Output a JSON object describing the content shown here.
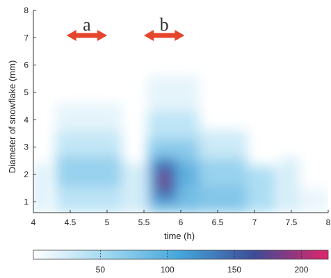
{
  "chart_data": {
    "type": "heatmap",
    "title": "",
    "xlabel": "time (h)",
    "ylabel": "Diameter of snowflake (mm)",
    "xlim": [
      4,
      8
    ],
    "ylim": [
      0.6,
      8
    ],
    "x_ticks": [
      "4",
      "4.5",
      "5",
      "5.5",
      "6",
      "6.5",
      "7",
      "7.5",
      "8"
    ],
    "y_ticks": [
      "1",
      "2",
      "3",
      "4",
      "5",
      "6",
      "7",
      "8"
    ],
    "cells": [
      {
        "x": [
          4.0,
          4.2
        ],
        "y": [
          0.6,
          2.4
        ],
        "v": 25
      },
      {
        "x": [
          4.3,
          5.2
        ],
        "y": [
          0.6,
          1.5
        ],
        "v": 45
      },
      {
        "x": [
          4.3,
          5.2
        ],
        "y": [
          1.5,
          2.7
        ],
        "v": 70
      },
      {
        "x": [
          4.3,
          5.2
        ],
        "y": [
          2.7,
          3.6
        ],
        "v": 40
      },
      {
        "x": [
          4.3,
          5.2
        ],
        "y": [
          3.6,
          4.6
        ],
        "v": 18
      },
      {
        "x": [
          5.2,
          5.55
        ],
        "y": [
          0.6,
          2.4
        ],
        "v": 30
      },
      {
        "x": [
          5.55,
          6.25
        ],
        "y": [
          0.6,
          1.5
        ],
        "v": 95
      },
      {
        "x": [
          5.55,
          6.25
        ],
        "y": [
          1.5,
          2.5
        ],
        "v": 110
      },
      {
        "x": [
          5.55,
          6.25
        ],
        "y": [
          2.5,
          3.3
        ],
        "v": 80
      },
      {
        "x": [
          5.55,
          6.25
        ],
        "y": [
          3.3,
          4.3
        ],
        "v": 45
      },
      {
        "x": [
          5.55,
          6.25
        ],
        "y": [
          4.3,
          5.6
        ],
        "v": 18
      },
      {
        "x": [
          5.62,
          5.95
        ],
        "y": [
          1.0,
          2.6
        ],
        "v": 135
      },
      {
        "x": [
          5.68,
          5.88
        ],
        "y": [
          1.3,
          2.3
        ],
        "v": 160
      },
      {
        "x": [
          5.72,
          5.82
        ],
        "y": [
          1.5,
          2.1
        ],
        "v": 195
      },
      {
        "x": [
          6.25,
          6.9
        ],
        "y": [
          0.6,
          1.6
        ],
        "v": 85
      },
      {
        "x": [
          6.25,
          6.9
        ],
        "y": [
          1.6,
          2.6
        ],
        "v": 70
      },
      {
        "x": [
          6.25,
          6.9
        ],
        "y": [
          2.6,
          3.6
        ],
        "v": 35
      },
      {
        "x": [
          6.9,
          7.3
        ],
        "y": [
          0.6,
          2.3
        ],
        "v": 55
      },
      {
        "x": [
          7.35,
          7.6
        ],
        "y": [
          0.6,
          2.6
        ],
        "v": 30
      },
      {
        "x": [
          7.6,
          8.0
        ],
        "y": [
          0.6,
          1.5
        ],
        "v": 14
      }
    ],
    "annotations": [
      {
        "label": "a",
        "x_range": [
          4.45,
          5.0
        ]
      },
      {
        "label": "b",
        "x_range": [
          5.5,
          6.05
        ]
      }
    ],
    "colorbar": {
      "ticks": [
        "50",
        "100",
        "150",
        "200"
      ],
      "tick_values": [
        50,
        100,
        150,
        200
      ],
      "range": [
        0,
        220
      ],
      "stops": [
        "#ffffff",
        "#9fd8f1",
        "#44a5db",
        "#3d4c96",
        "#e0246a"
      ]
    }
  }
}
